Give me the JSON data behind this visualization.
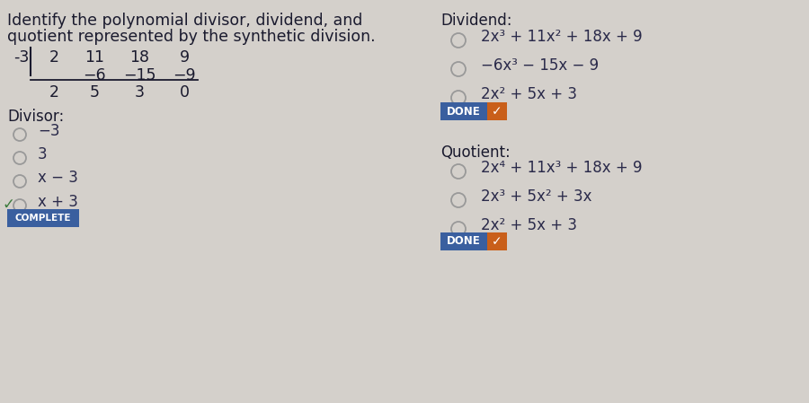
{
  "bg_color": "#d4d0cb",
  "title_line1": "Identify the polynomial divisor, dividend, and",
  "title_line2": "quotient represented by the synthetic division.",
  "synth_neg3": "-3",
  "synth_row1": [
    "2",
    "11",
    "18",
    "9"
  ],
  "synth_row2": [
    "−6",
    "−15",
    "−9"
  ],
  "synth_row3": [
    "2",
    "5",
    "3",
    "0"
  ],
  "divisor_label": "Divisor:",
  "divisor_options": [
    "−3",
    "3",
    "x − 3",
    "x + 3"
  ],
  "divisor_correct_idx": 3,
  "complete_btn_text": "COMPLETE",
  "complete_btn_color": "#3a5f9f",
  "dividend_label": "Dividend:",
  "dividend_options": [
    "2x³ + 11x² + 18x + 9",
    "−6x³ − 15x − 9",
    "2x² + 5x + 3"
  ],
  "done_btn_text": "DONE",
  "done_btn_color": "#3a5f9f",
  "done_check_color": "#c95f1a",
  "quotient_label": "Quotient:",
  "quotient_options": [
    "2x⁴ + 11x³ + 18x + 9",
    "2x³ + 5x² + 3x",
    "2x² + 5x + 3"
  ],
  "text_dark": "#1a1a2e",
  "text_option": "#2a2a4a",
  "radio_color": "#999999",
  "check_green": "#3a7a3a",
  "fs_title": 12.5,
  "fs_body": 12.0,
  "fs_synth": 12.5,
  "fs_option": 12.0,
  "fs_btn": 8.0
}
